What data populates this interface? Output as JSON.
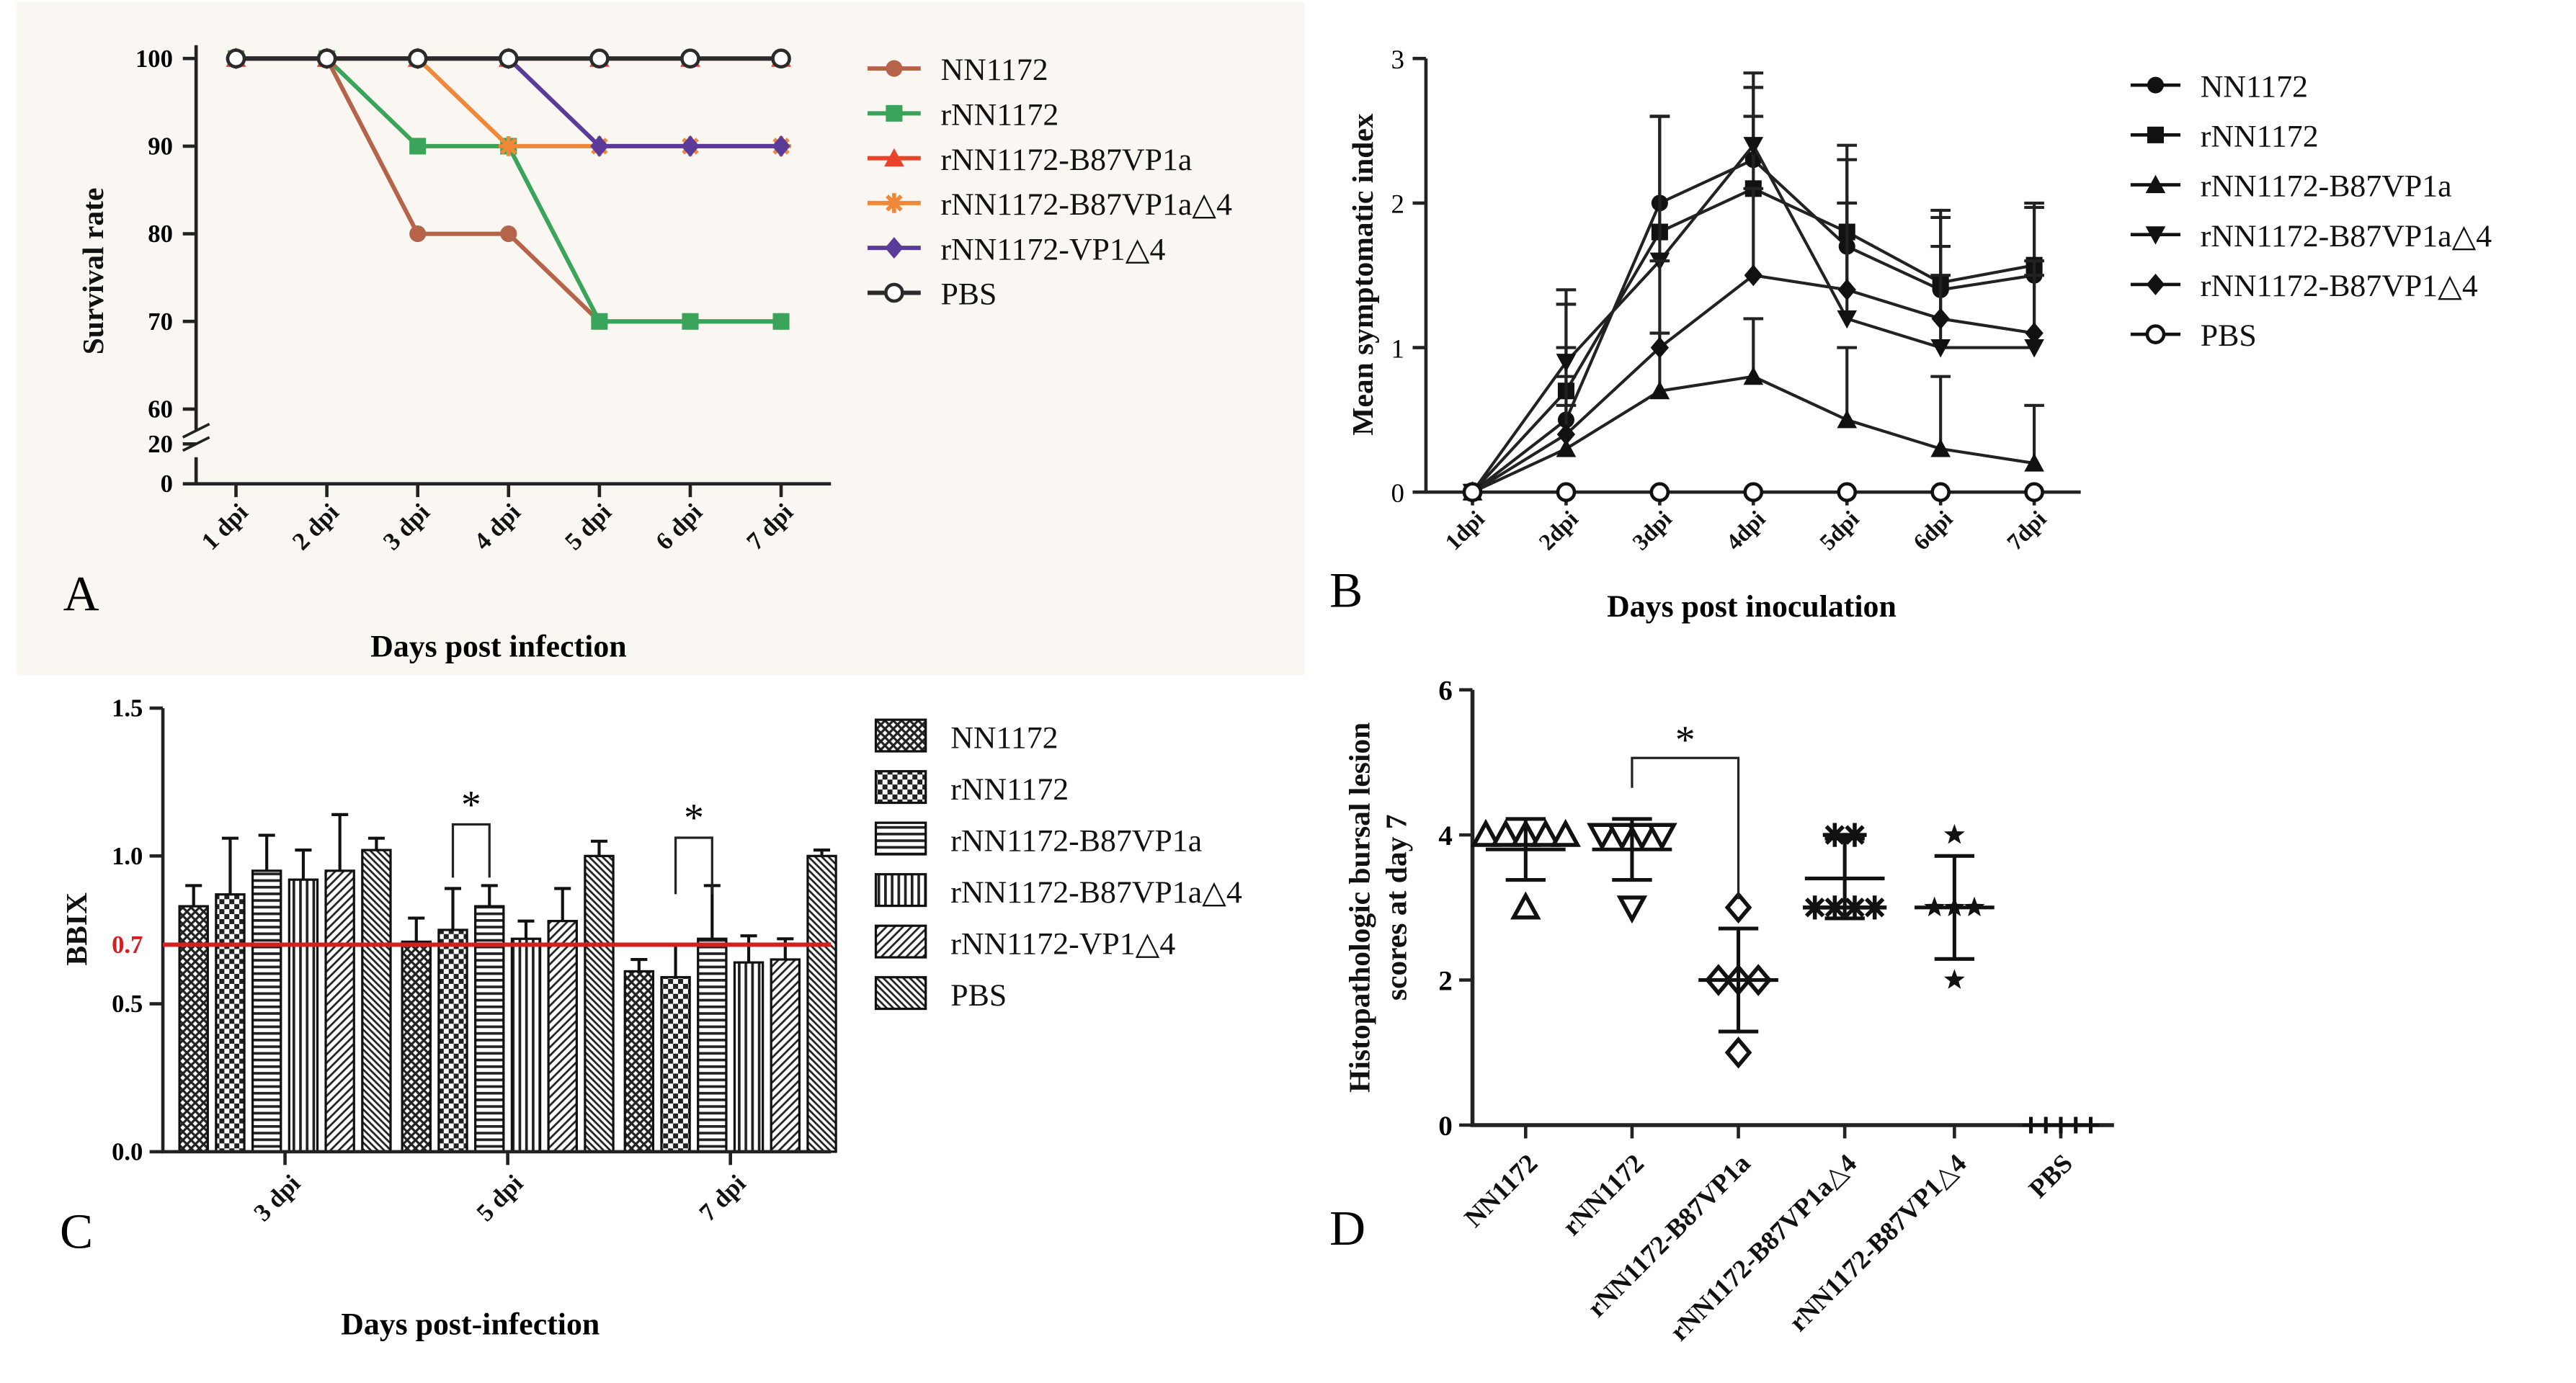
{
  "chart_data": [
    {
      "panel": "A",
      "type": "line",
      "ylabel": "Survival rate",
      "xlabel": "Days post infection",
      "categories": [
        "1 dpi",
        "2 dpi",
        "3 dpi",
        "4 dpi",
        "5 dpi",
        "6 dpi",
        "7 dpi"
      ],
      "yticks_upper": [
        "60",
        "70",
        "80",
        "90",
        "100"
      ],
      "yticks_lower": [
        "0",
        "20"
      ],
      "ylim": [
        60,
        100
      ],
      "axis_break": true,
      "background": "#faf6f1",
      "series": [
        {
          "name": "NN1172",
          "color": "#b5644a",
          "marker": "circle",
          "values": [
            100,
            100,
            80,
            80,
            70,
            70,
            70
          ]
        },
        {
          "name": "rNN1172",
          "color": "#3aa55a",
          "marker": "square",
          "values": [
            100,
            100,
            90,
            90,
            70,
            70,
            70
          ]
        },
        {
          "name": "rNN1172-B87VP1a",
          "color": "#e8442c",
          "marker": "triangle",
          "values": [
            100,
            100,
            100,
            100,
            100,
            100,
            100
          ]
        },
        {
          "name": "rNN1172-B87VP1a△4",
          "color": "#f0883a",
          "marker": "asterisk",
          "values": [
            100,
            100,
            100,
            90,
            90,
            90,
            90
          ]
        },
        {
          "name": "rNN1172-VP1△4",
          "color": "#5a3b9a",
          "marker": "diamond",
          "values": [
            100,
            100,
            100,
            100,
            90,
            90,
            90
          ]
        },
        {
          "name": "PBS",
          "color": "#2b2b2b",
          "marker": "open-circle",
          "values": [
            100,
            100,
            100,
            100,
            100,
            100,
            100
          ]
        }
      ]
    },
    {
      "panel": "B",
      "type": "line",
      "ylabel": "Mean symptomatic index",
      "xlabel": "Days post inoculation",
      "categories": [
        "1dpi",
        "2dpi",
        "3dpi",
        "4dpi",
        "5dpi",
        "6dpi",
        "7dpi"
      ],
      "yticks": [
        "0",
        "1",
        "2",
        "3"
      ],
      "ylim": [
        0,
        3
      ],
      "series": [
        {
          "name": "NN1172",
          "marker": "circle",
          "values": [
            0,
            0.5,
            2.0,
            2.3,
            1.7,
            1.4,
            1.5
          ],
          "errors": [
            0,
            0.5,
            0.6,
            0.5,
            0.6,
            0.5,
            0.5
          ]
        },
        {
          "name": "rNN1172",
          "marker": "square",
          "values": [
            0,
            0.7,
            1.8,
            2.1,
            1.8,
            1.45,
            1.57
          ],
          "errors": [
            0,
            0.6,
            0.8,
            0.5,
            0.6,
            0.5,
            0.4
          ]
        },
        {
          "name": "rNN1172-B87VP1a",
          "marker": "triangle",
          "values": [
            0,
            0.3,
            0.7,
            0.8,
            0.5,
            0.3,
            0.2
          ],
          "errors": [
            0,
            0.3,
            0.4,
            0.4,
            0.5,
            0.5,
            0.4
          ]
        },
        {
          "name": "rNN1172-B87VP1a△4",
          "marker": "triangle-down",
          "values": [
            0,
            0.9,
            1.6,
            2.4,
            1.2,
            1.0,
            1.0
          ],
          "errors": [
            0,
            0.5,
            1.0,
            0.5,
            0.8,
            0.5,
            0.5
          ]
        },
        {
          "name": "rNN1172-B87VP1△4",
          "marker": "diamond",
          "values": [
            0,
            0.4,
            1.0,
            1.5,
            1.4,
            1.2,
            1.1
          ],
          "errors": [
            0,
            0.4,
            0.6,
            0.6,
            0.6,
            0.5,
            0.5
          ]
        },
        {
          "name": "PBS",
          "marker": "open-circle",
          "values": [
            0,
            0,
            0,
            0,
            0,
            0,
            0
          ],
          "errors": [
            0,
            0,
            0,
            0,
            0,
            0,
            0
          ]
        }
      ]
    },
    {
      "panel": "C",
      "type": "bar",
      "ylabel": "BBIX",
      "xlabel": "Days post-infection",
      "categories": [
        "3 dpi",
        "5 dpi",
        "7 dpi"
      ],
      "yticks": [
        "0.0",
        "0.5",
        "1.0",
        "1.5"
      ],
      "ylim": [
        0,
        1.5
      ],
      "reference_line": {
        "value": 0.7,
        "label": "0.7",
        "color": "#d42020"
      },
      "significance": [
        {
          "category": "5 dpi",
          "label": "*"
        },
        {
          "category": "7 dpi",
          "label": "*"
        }
      ],
      "series": [
        {
          "name": "NN1172",
          "pattern": "crosshatch",
          "values": [
            0.83,
            0.71,
            0.61
          ],
          "errors": [
            0.07,
            0.08,
            0.04
          ]
        },
        {
          "name": "rNN1172",
          "pattern": "checker",
          "values": [
            0.87,
            0.75,
            0.59
          ],
          "errors": [
            0.19,
            0.14,
            0.11
          ]
        },
        {
          "name": "rNN1172-B87VP1a",
          "pattern": "horizontal",
          "values": [
            0.95,
            0.83,
            0.72
          ],
          "errors": [
            0.12,
            0.07,
            0.18
          ]
        },
        {
          "name": "rNN1172-B87VP1a△4",
          "pattern": "vertical",
          "values": [
            0.92,
            0.72,
            0.64
          ],
          "errors": [
            0.1,
            0.06,
            0.09
          ]
        },
        {
          "name": "rNN1172-VP1△4",
          "pattern": "diagonal",
          "values": [
            0.95,
            0.78,
            0.65
          ],
          "errors": [
            0.19,
            0.11,
            0.07
          ]
        },
        {
          "name": "PBS",
          "pattern": "diagonal-dense",
          "values": [
            1.02,
            1.0,
            1.0
          ],
          "errors": [
            0.04,
            0.05,
            0.02
          ]
        }
      ]
    },
    {
      "panel": "D",
      "type": "scatter",
      "ylabel": "Histopathologic bursal lesion scores at day 7",
      "categories": [
        "NN1172",
        "rNN1172",
        "rNN1172-B87VP1a",
        "rNN1172-B87VP1a△4",
        "rNN1172-B87VP1△4",
        "PBS"
      ],
      "yticks": [
        "0",
        "2",
        "4",
        "6"
      ],
      "ylim": [
        0,
        6
      ],
      "significance": [
        {
          "from": "rNN1172",
          "to": "rNN1172-B87VP1a",
          "label": "*"
        }
      ],
      "groups": [
        {
          "name": "NN1172",
          "marker": "triangle-open",
          "points": [
            4,
            4,
            4,
            4,
            3,
            4
          ],
          "mean": 3.8,
          "sd": 0.42
        },
        {
          "name": "rNN1172",
          "marker": "triangle-down-open",
          "points": [
            4,
            4,
            4,
            3,
            4
          ],
          "mean": 3.8,
          "sd": 0.42
        },
        {
          "name": "rNN1172-B87VP1a",
          "marker": "diamond-open",
          "points": [
            3,
            2,
            2,
            2,
            1
          ],
          "mean": 2.0,
          "sd": 0.71
        },
        {
          "name": "rNN1172-B87VP1a△4",
          "marker": "asterisk",
          "points": [
            4,
            4,
            3,
            3,
            3,
            3
          ],
          "mean": 3.4,
          "sd": 0.55
        },
        {
          "name": "rNN1172-B87VP1△4",
          "marker": "star",
          "points": [
            4,
            3,
            3,
            3,
            2
          ],
          "mean": 3.0,
          "sd": 0.71
        },
        {
          "name": "PBS",
          "marker": "plus",
          "points": [
            0,
            0,
            0,
            0,
            0
          ],
          "mean": 0,
          "sd": 0
        }
      ]
    }
  ],
  "panel_letters": [
    "A",
    "B",
    "C",
    "D"
  ]
}
